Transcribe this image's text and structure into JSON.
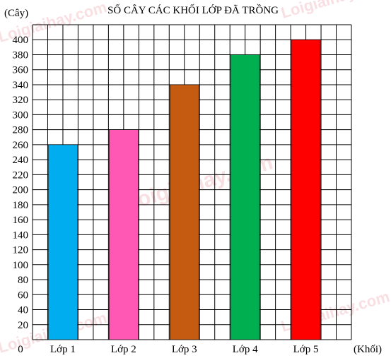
{
  "chart_data": {
    "type": "bar",
    "title": "SỐ CÂY CÁC KHỐI LỚP ĐÃ TRỒNG",
    "ylabel": "(Cây)",
    "xlabel": "(Khối)",
    "categories": [
      "Lớp 1",
      "Lớp 2",
      "Lớp 3",
      "Lớp 4",
      "Lớp 5"
    ],
    "values": [
      260,
      280,
      340,
      380,
      400
    ],
    "colors": [
      "#00aeef",
      "#ff57b4",
      "#c55a11",
      "#00b050",
      "#ff0000"
    ],
    "yticks": [
      0,
      20,
      40,
      60,
      80,
      100,
      120,
      140,
      160,
      180,
      200,
      220,
      240,
      260,
      280,
      300,
      320,
      340,
      360,
      380,
      400
    ],
    "ylim": [
      0,
      400
    ],
    "grid": true
  },
  "watermark": "Loigiaihay.com"
}
